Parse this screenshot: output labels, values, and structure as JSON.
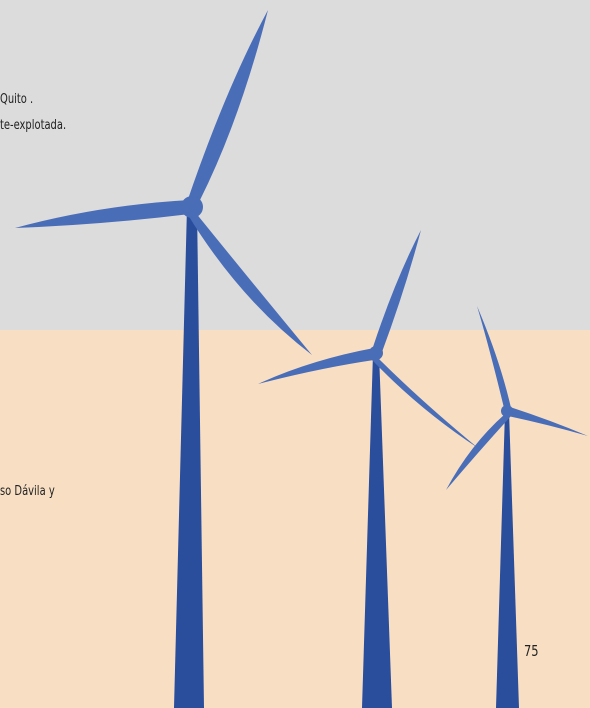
{
  "text_lines": [
    "Quito .",
    "te-explotada.",
    "so Dávila y"
  ],
  "page_number": "75"
}
